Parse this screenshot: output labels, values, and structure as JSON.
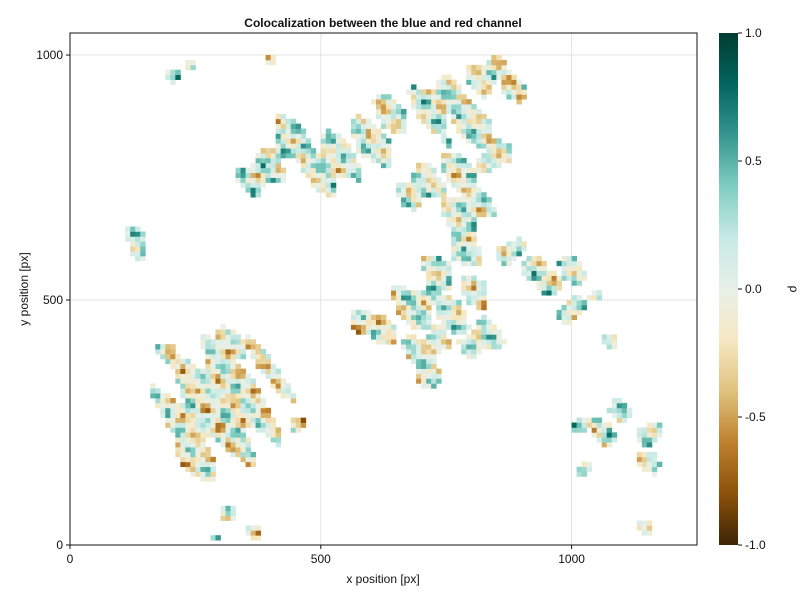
{
  "chart_data": {
    "type": "heatmap",
    "title": "Colocalization between the blue and red channel",
    "xlabel": "x position [px]",
    "ylabel": "y position [px]",
    "xlim": [
      0,
      1250
    ],
    "ylim": [
      0,
      1045
    ],
    "x_ticks": [
      0,
      500,
      1000
    ],
    "y_ticks": [
      0,
      500,
      1000
    ],
    "x_tick_labels": [
      "0",
      "500",
      "1000"
    ],
    "y_tick_labels": [
      "0",
      "500",
      "1000"
    ],
    "grid": true,
    "colorbar": {
      "label": "ρ",
      "range": [
        -1.0,
        1.0
      ],
      "ticks": [
        -1.0,
        -0.5,
        0.0,
        0.5,
        1.0
      ],
      "tick_labels": [
        "-1.0",
        "-0.5",
        "0.0",
        "0.5",
        "1.0"
      ],
      "colormap": "BrBG",
      "stops": [
        "#3d2505",
        "#8c510a",
        "#bf812d",
        "#dfc27d",
        "#f6e8c3",
        "#e8f0e8",
        "#c7eae5",
        "#80cdc1",
        "#35978f",
        "#01665e",
        "#003c30"
      ]
    },
    "regions": [
      {
        "cx": 300,
        "cy": 290,
        "r": 130,
        "mean": -0.05
      },
      {
        "cx": 250,
        "cy": 180,
        "r": 55,
        "mean": -0.1
      },
      {
        "cx": 200,
        "cy": 400,
        "r": 25,
        "mean": 0.05
      },
      {
        "cx": 320,
        "cy": 410,
        "r": 35,
        "mean": 0.0
      },
      {
        "cx": 460,
        "cy": 250,
        "r": 22,
        "mean": -0.15
      },
      {
        "cx": 125,
        "cy": 625,
        "r": 22,
        "mean": 0.1
      },
      {
        "cx": 135,
        "cy": 595,
        "r": 16,
        "mean": 0.1
      },
      {
        "cx": 310,
        "cy": 60,
        "r": 22,
        "mean": 0.0
      },
      {
        "cx": 370,
        "cy": 30,
        "r": 18,
        "mean": 0.0
      },
      {
        "cx": 290,
        "cy": 15,
        "r": 14,
        "mean": 0.0
      },
      {
        "cx": 380,
        "cy": 760,
        "r": 45,
        "mean": 0.1
      },
      {
        "cx": 440,
        "cy": 820,
        "r": 55,
        "mean": 0.1
      },
      {
        "cx": 520,
        "cy": 780,
        "r": 60,
        "mean": 0.05
      },
      {
        "cx": 600,
        "cy": 820,
        "r": 55,
        "mean": 0.05
      },
      {
        "cx": 640,
        "cy": 880,
        "r": 45,
        "mean": 0.0
      },
      {
        "cx": 730,
        "cy": 900,
        "r": 55,
        "mean": 0.05
      },
      {
        "cx": 800,
        "cy": 860,
        "r": 60,
        "mean": 0.05
      },
      {
        "cx": 780,
        "cy": 760,
        "r": 50,
        "mean": 0.05
      },
      {
        "cx": 830,
        "cy": 960,
        "r": 40,
        "mean": 0.0
      },
      {
        "cx": 880,
        "cy": 930,
        "r": 30,
        "mean": -0.1
      },
      {
        "cx": 845,
        "cy": 790,
        "r": 35,
        "mean": 0.05
      },
      {
        "cx": 700,
        "cy": 730,
        "r": 45,
        "mean": 0.05
      },
      {
        "cx": 790,
        "cy": 680,
        "r": 50,
        "mean": 0.05
      },
      {
        "cx": 780,
        "cy": 600,
        "r": 45,
        "mean": 0.1
      },
      {
        "cx": 740,
        "cy": 560,
        "r": 40,
        "mean": 0.1
      },
      {
        "cx": 690,
        "cy": 490,
        "r": 50,
        "mean": 0.05
      },
      {
        "cx": 760,
        "cy": 470,
        "r": 45,
        "mean": 0.05
      },
      {
        "cx": 810,
        "cy": 520,
        "r": 35,
        "mean": 0.05
      },
      {
        "cx": 820,
        "cy": 420,
        "r": 40,
        "mean": 0.05
      },
      {
        "cx": 710,
        "cy": 400,
        "r": 45,
        "mean": 0.0
      },
      {
        "cx": 720,
        "cy": 350,
        "r": 30,
        "mean": 0.0
      },
      {
        "cx": 620,
        "cy": 440,
        "r": 35,
        "mean": -0.05
      },
      {
        "cx": 580,
        "cy": 450,
        "r": 30,
        "mean": -0.1
      },
      {
        "cx": 880,
        "cy": 600,
        "r": 30,
        "mean": 0.1
      },
      {
        "cx": 920,
        "cy": 560,
        "r": 30,
        "mean": 0.05
      },
      {
        "cx": 960,
        "cy": 540,
        "r": 30,
        "mean": 0.05
      },
      {
        "cx": 1000,
        "cy": 560,
        "r": 30,
        "mean": 0.1
      },
      {
        "cx": 1000,
        "cy": 480,
        "r": 30,
        "mean": 0.05
      },
      {
        "cx": 1050,
        "cy": 510,
        "r": 20,
        "mean": 0.05
      },
      {
        "cx": 1080,
        "cy": 420,
        "r": 18,
        "mean": -0.1
      },
      {
        "cx": 1130,
        "cy": 490,
        "r": 10,
        "mean": 0.05
      },
      {
        "cx": 1020,
        "cy": 245,
        "r": 22,
        "mean": 0.1
      },
      {
        "cx": 1060,
        "cy": 230,
        "r": 28,
        "mean": 0.1
      },
      {
        "cx": 1090,
        "cy": 270,
        "r": 25,
        "mean": 0.1
      },
      {
        "cx": 1160,
        "cy": 230,
        "r": 30,
        "mean": 0.1
      },
      {
        "cx": 1155,
        "cy": 170,
        "r": 24,
        "mean": 0.1
      },
      {
        "cx": 1020,
        "cy": 150,
        "r": 22,
        "mean": 0.05
      },
      {
        "cx": 1150,
        "cy": 40,
        "r": 18,
        "mean": -0.1
      },
      {
        "cx": 210,
        "cy": 960,
        "r": 16,
        "mean": 0.1
      },
      {
        "cx": 240,
        "cy": 980,
        "r": 10,
        "mean": 0.0
      },
      {
        "cx": 400,
        "cy": 990,
        "r": 8,
        "mean": 0.0
      }
    ]
  }
}
